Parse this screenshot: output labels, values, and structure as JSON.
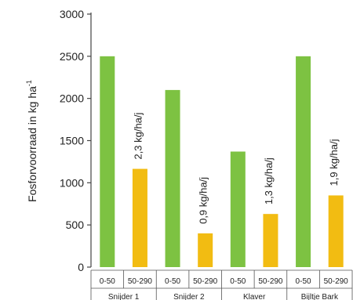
{
  "chart_data": {
    "type": "bar",
    "ylabel": "Fosforvoorraad in kg ha",
    "ylabel_superscript": "-1",
    "ylim": [
      0,
      3000
    ],
    "yticks": [
      0,
      500,
      1000,
      1500,
      2000,
      2500,
      3000
    ],
    "colors": {
      "shallow": "#7dc242",
      "deep": "#f2bc12"
    },
    "groups": [
      {
        "name": "Snijder 1",
        "bars": [
          {
            "category": "0-50",
            "value": 2500,
            "layer": "shallow"
          },
          {
            "category": "50-290",
            "value": 1165,
            "layer": "deep",
            "annotation": "2,3 kg/ha/j"
          }
        ]
      },
      {
        "name": "Snijder 2",
        "bars": [
          {
            "category": "0-50",
            "value": 2100,
            "layer": "shallow"
          },
          {
            "category": "50-290",
            "value": 400,
            "layer": "deep",
            "annotation": "0,9 kg/ha/j"
          }
        ]
      },
      {
        "name": "Klaver",
        "bars": [
          {
            "category": "0-50",
            "value": 1370,
            "layer": "shallow"
          },
          {
            "category": "50-290",
            "value": 630,
            "layer": "deep",
            "annotation": "1,3 kg/ha/j"
          }
        ]
      },
      {
        "name": "Bijltje Bark",
        "bars": [
          {
            "category": "0-50",
            "value": 2500,
            "layer": "shallow"
          },
          {
            "category": "50-290",
            "value": 850,
            "layer": "deep",
            "annotation": "1,9 kg/ha/j"
          }
        ]
      }
    ]
  }
}
